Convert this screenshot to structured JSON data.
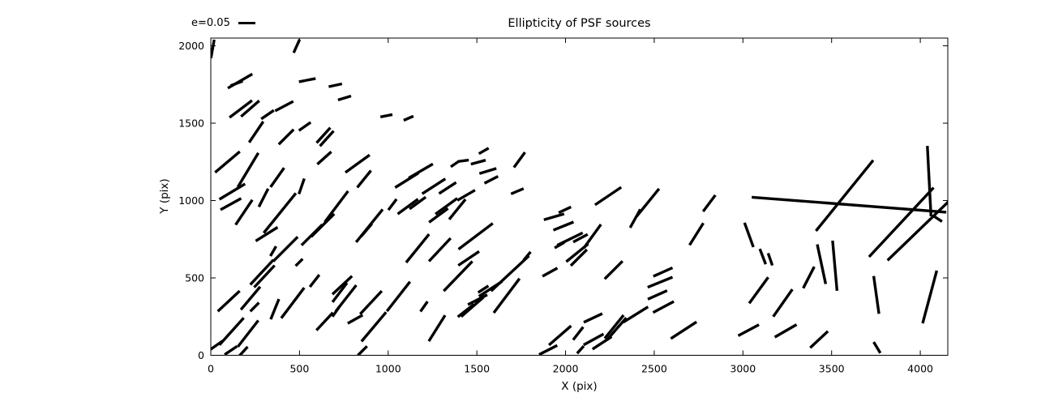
{
  "colors": {
    "ink": "#000000",
    "background": "#ffffff"
  },
  "chart_data": {
    "type": "whisker-quiver",
    "title": "Ellipticity of PSF sources",
    "xlabel": "X (pix)",
    "ylabel": "Y (pix)",
    "xlim": [
      0,
      4155
    ],
    "ylim": [
      0,
      2050
    ],
    "xticks": [
      0,
      500,
      1000,
      1500,
      2000,
      2500,
      3000,
      3500,
      4000
    ],
    "yticks": [
      0,
      500,
      1000,
      1500,
      2000
    ],
    "grid": false,
    "legend": {
      "label": "e=0.05",
      "e": 0.05,
      "position": "upper-left-outside"
    },
    "whisker_format": [
      "x_pix",
      "y_pix",
      "angle_deg_ccw",
      "ellipticity"
    ],
    "whiskers": [
      [
        484,
        1998,
        66,
        0.043
      ],
      [
        165,
        1772,
        30,
        0.083
      ],
      [
        146,
        1757,
        20,
        0.038
      ],
      [
        544,
        1778,
        11,
        0.05
      ],
      [
        169,
        1592,
        37,
        0.083
      ],
      [
        222,
        1594,
        41,
        0.071
      ],
      [
        320,
        1555,
        34,
        0.045
      ],
      [
        414,
        1610,
        28,
        0.06
      ],
      [
        256,
        1443,
        56,
        0.074
      ],
      [
        425,
        1411,
        45,
        0.062
      ],
      [
        530,
        1479,
        35,
        0.042
      ],
      [
        635,
        1422,
        48,
        0.06
      ],
      [
        654,
        1401,
        48,
        0.06
      ],
      [
        94,
        1249,
        40,
        0.095
      ],
      [
        210,
        1197,
        59,
        0.117
      ],
      [
        640,
        1275,
        42,
        0.055
      ],
      [
        512,
        1092,
        71,
        0.048
      ],
      [
        702,
        1745,
        12,
        0.04
      ],
      [
        754,
        1663,
        17,
        0.04
      ],
      [
        990,
        1548,
        11,
        0.036
      ],
      [
        1115,
        1532,
        23,
        0.031
      ],
      [
        827,
        1238,
        36,
        0.088
      ],
      [
        864,
        1139,
        51,
        0.064
      ],
      [
        1105,
        1131,
        32,
        0.081
      ],
      [
        1184,
        1191,
        30,
        0.082
      ],
      [
        1257,
        1092,
        33,
        0.081
      ],
      [
        1335,
        1081,
        33,
        0.06
      ],
      [
        1376,
        1236,
        35,
        0.029
      ],
      [
        1424,
        1257,
        7,
        0.032
      ],
      [
        1539,
        1321,
        30,
        0.033
      ],
      [
        1508,
        1248,
        15,
        0.045
      ],
      [
        1562,
        1191,
        17,
        0.052
      ],
      [
        1581,
        1134,
        27,
        0.045
      ],
      [
        1740,
        1263,
        54,
        0.055
      ],
      [
        1728,
        1060,
        23,
        0.04
      ],
      [
        1440,
        1034,
        30,
        0.06
      ],
      [
        121,
        1058,
        31,
        0.088
      ],
      [
        113,
        977,
        29,
        0.069
      ],
      [
        187,
        924,
        56,
        0.088
      ],
      [
        297,
        1018,
        63,
        0.06
      ],
      [
        315,
        783,
        32,
        0.076
      ],
      [
        389,
        919,
        51,
        0.15
      ],
      [
        375,
        1149,
        55,
        0.069
      ],
      [
        352,
        673,
        60,
        0.033
      ],
      [
        288,
        537,
        47,
        0.1
      ],
      [
        302,
        510,
        47,
        0.088
      ],
      [
        421,
        686,
        45,
        0.102
      ],
      [
        498,
        600,
        45,
        0.029
      ],
      [
        570,
        778,
        45,
        0.086
      ],
      [
        631,
        840,
        45,
        0.095
      ],
      [
        708,
        961,
        53,
        0.114
      ],
      [
        101,
        350,
        43,
        0.088
      ],
      [
        224,
        369,
        50,
        0.088
      ],
      [
        247,
        312,
        45,
        0.036
      ],
      [
        361,
        298,
        68,
        0.064
      ],
      [
        462,
        338,
        53,
        0.112
      ],
      [
        585,
        481,
        52,
        0.045
      ],
      [
        117,
        154,
        48,
        0.107
      ],
      [
        210,
        140,
        52,
        0.098
      ],
      [
        642,
        219,
        47,
        0.071
      ],
      [
        32,
        65,
        35,
        0.043
      ],
      [
        183,
        24,
        48,
        0.038
      ],
      [
        113,
        31,
        34,
        0.044
      ],
      [
        894,
        837,
        51,
        0.124
      ],
      [
        878,
        809,
        50,
        0.048
      ],
      [
        1024,
        974,
        53,
        0.04
      ],
      [
        1111,
        961,
        36,
        0.074
      ],
      [
        1166,
        984,
        36,
        0.059
      ],
      [
        1284,
        904,
        36,
        0.069
      ],
      [
        1328,
        963,
        36,
        0.079
      ],
      [
        1390,
        943,
        51,
        0.076
      ],
      [
        1166,
        691,
        51,
        0.107
      ],
      [
        1291,
        682,
        47,
        0.093
      ],
      [
        1394,
        511,
        46,
        0.121
      ],
      [
        741,
        453,
        43,
        0.079
      ],
      [
        727,
        406,
        53,
        0.071
      ],
      [
        762,
        368,
        52,
        0.098
      ],
      [
        707,
        284,
        55,
        0.038
      ],
      [
        814,
        233,
        29,
        0.05
      ],
      [
        903,
        341,
        47,
        0.093
      ],
      [
        919,
        184,
        50,
        0.112
      ],
      [
        1058,
        380,
        52,
        0.11
      ],
      [
        1202,
        315,
        55,
        0.036
      ],
      [
        1275,
        175,
        58,
        0.09
      ],
      [
        855,
        29,
        45,
        0.038
      ],
      [
        1493,
        769,
        37,
        0.126
      ],
      [
        1454,
        626,
        34,
        0.074
      ],
      [
        1577,
        429,
        33,
        0.081
      ],
      [
        1536,
        427,
        33,
        0.036
      ],
      [
        1687,
        529,
        43,
        0.152
      ],
      [
        1668,
        385,
        53,
        0.126
      ],
      [
        1504,
        359,
        27,
        0.064
      ],
      [
        1474,
        312,
        41,
        0.086
      ],
      [
        1438,
        289,
        38,
        0.06
      ],
      [
        1783,
        641,
        50,
        0.032
      ],
      [
        1912,
        537,
        29,
        0.05
      ],
      [
        1935,
        895,
        16,
        0.062
      ],
      [
        1988,
        835,
        22,
        0.064
      ],
      [
        1996,
        940,
        25,
        0.04
      ],
      [
        1966,
        712,
        30,
        0.033
      ],
      [
        2025,
        751,
        26,
        0.083
      ],
      [
        2066,
        662,
        39,
        0.083
      ],
      [
        2075,
        631,
        45,
        0.067
      ],
      [
        2084,
        757,
        28,
        0.048
      ],
      [
        1902,
        34,
        27,
        0.06
      ],
      [
        1969,
        128,
        41,
        0.086
      ],
      [
        2071,
        141,
        52,
        0.048
      ],
      [
        2084,
        36,
        48,
        0.029
      ],
      [
        2240,
        1029,
        34,
        0.093
      ],
      [
        2393,
        884,
        61,
        0.062
      ],
      [
        2464,
        987,
        51,
        0.105
      ],
      [
        2151,
        769,
        54,
        0.086
      ],
      [
        2271,
        551,
        45,
        0.074
      ],
      [
        2549,
        538,
        24,
        0.062
      ],
      [
        2533,
        472,
        22,
        0.079
      ],
      [
        2518,
        390,
        24,
        0.062
      ],
      [
        2552,
        312,
        28,
        0.069
      ],
      [
        2395,
        263,
        32,
        0.086
      ],
      [
        2274,
        184,
        51,
        0.088
      ],
      [
        2288,
        171,
        49,
        0.086
      ],
      [
        2155,
        241,
        25,
        0.06
      ],
      [
        2158,
        102,
        29,
        0.067
      ],
      [
        2206,
        80,
        33,
        0.067
      ],
      [
        2666,
        162,
        33,
        0.09
      ],
      [
        2738,
        783,
        58,
        0.076
      ],
      [
        2810,
        982,
        53,
        0.06
      ],
      [
        3034,
        778,
        -70,
        0.076
      ],
      [
        3112,
        638,
        -69,
        0.048
      ],
      [
        3154,
        620,
        -71,
        0.038
      ],
      [
        3089,
        420,
        54,
        0.095
      ],
      [
        3225,
        338,
        55,
        0.098
      ],
      [
        3371,
        503,
        63,
        0.071
      ],
      [
        3443,
        589,
        -78,
        0.119
      ],
      [
        3032,
        162,
        28,
        0.069
      ],
      [
        3241,
        158,
        30,
        0.074
      ],
      [
        3429,
        102,
        43,
        0.071
      ],
      [
        3518,
        579,
        -85,
        0.148
      ],
      [
        3752,
        390,
        -82,
        0.112
      ],
      [
        4053,
        377,
        75,
        0.16
      ],
      [
        3756,
        50,
        -59,
        0.038
      ],
      [
        3598,
        973,
        -4.4,
        0.573
      ],
      [
        3573,
        1032,
        51,
        0.267
      ],
      [
        4050,
        1126,
        93,
        0.207
      ],
      [
        3893,
        860,
        47,
        0.278
      ],
      [
        3988,
        804,
        44,
        0.25
      ],
      [
        4099,
        882,
        -33,
        0.029
      ],
      [
        10,
        1980,
        80,
        0.055
      ]
    ]
  }
}
